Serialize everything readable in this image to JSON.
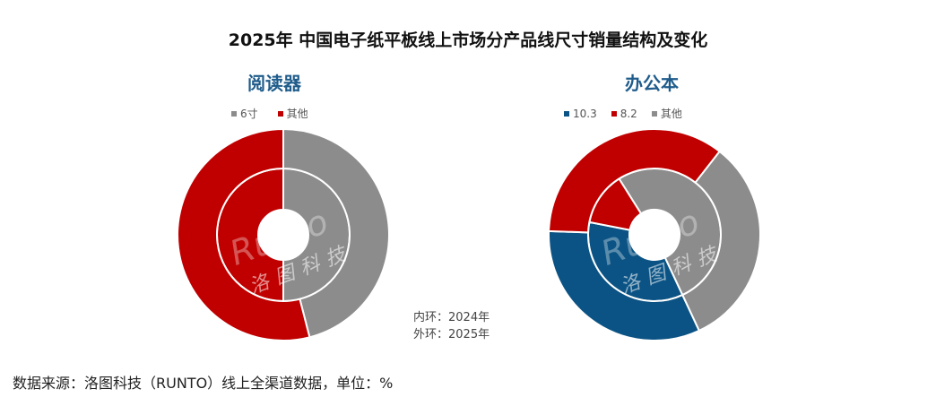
{
  "chart_data": [
    {
      "type": "pie",
      "subtitle": "阅读器",
      "legend": [
        "6寸",
        "其他"
      ],
      "colors": [
        "#8c8c8c",
        "#c00000"
      ],
      "start_angle_deg": 0,
      "rings": [
        {
          "name": "2024年",
          "position": "inner",
          "values": [
            50,
            50
          ]
        },
        {
          "name": "2025年",
          "position": "outer",
          "values": [
            46,
            54
          ]
        }
      ]
    },
    {
      "type": "pie",
      "subtitle": "办公本",
      "legend": [
        "10.3",
        "8.2",
        "其他"
      ],
      "colors": [
        "#0b5384",
        "#c00000",
        "#8c8c8c"
      ],
      "start_angle_deg": 155,
      "rings": [
        {
          "name": "2024年",
          "position": "inner",
          "values": [
            35,
            13,
            52
          ]
        },
        {
          "name": "2025年",
          "position": "outer",
          "values": [
            32.5,
            35,
            32.5
          ]
        }
      ]
    }
  ],
  "title": "2025年 中国电子纸平板线上市场分产品线尺寸销量结构及变化",
  "notes": {
    "inner": "内环：2024年",
    "outer": "外环：2025年"
  },
  "watermark": {
    "en": "Runto",
    "cn": "洛图科技"
  },
  "source": "数据来源：洛图科技（RUNTO）线上全渠道数据，单位：%"
}
